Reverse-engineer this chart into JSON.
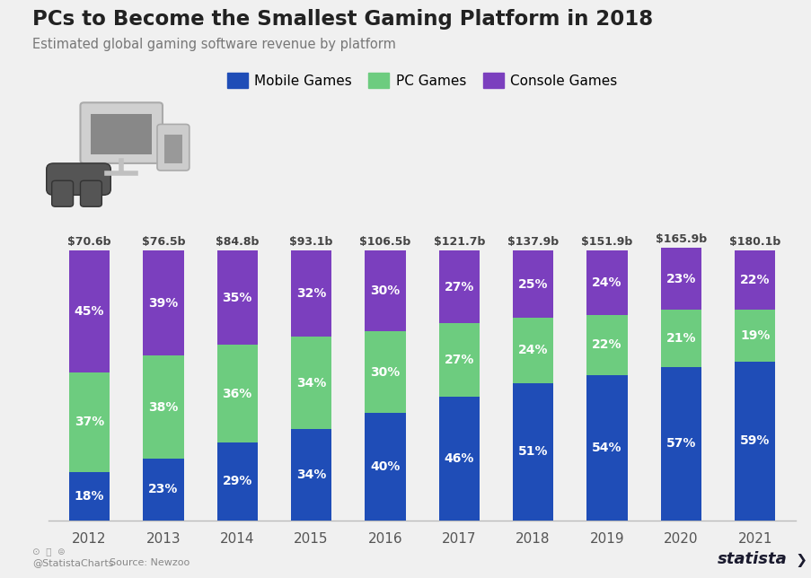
{
  "title": "PCs to Become the Smallest Gaming Platform in 2018",
  "subtitle": "Estimated global gaming software revenue by platform",
  "years": [
    "2012",
    "2013",
    "2014",
    "2015",
    "2016",
    "2017",
    "2018",
    "2019",
    "2020",
    "2021"
  ],
  "total_labels": [
    "$70.6b",
    "$76.5b",
    "$84.8b",
    "$93.1b",
    "$106.5b",
    "$121.7b",
    "$137.9b",
    "$151.9b",
    "$165.9b",
    "$180.1b"
  ],
  "mobile": [
    18,
    23,
    29,
    34,
    40,
    46,
    51,
    54,
    57,
    59
  ],
  "pc": [
    37,
    38,
    36,
    34,
    30,
    27,
    24,
    22,
    21,
    19
  ],
  "console": [
    45,
    39,
    35,
    32,
    30,
    27,
    25,
    24,
    23,
    22
  ],
  "mobile_color": "#1f4db7",
  "pc_color": "#6dcc7f",
  "console_color": "#7b3fbe",
  "bar_width": 0.55,
  "background_color": "#f0f0f0",
  "legend_labels": [
    "Mobile Games",
    "PC Games",
    "Console Games"
  ],
  "source_text": "Source: Newzoo",
  "footer_handle": "@StatistaCharts",
  "ylim": [
    0,
    118
  ],
  "label_fontsize": 10,
  "total_label_fontsize": 9,
  "tick_fontsize": 11
}
